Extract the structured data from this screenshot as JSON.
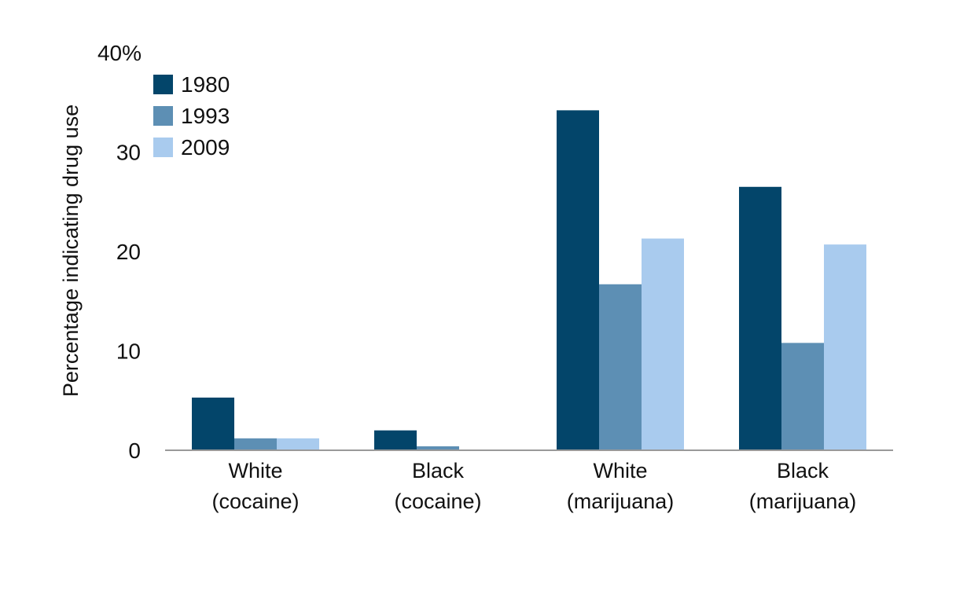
{
  "chart_data": {
    "type": "bar",
    "title": "",
    "xlabel": "",
    "ylabel": "Percentage indicating drug use",
    "ylim": [
      0,
      40
    ],
    "yticks": [
      {
        "value": 0,
        "label": "0"
      },
      {
        "value": 10,
        "label": "10"
      },
      {
        "value": 20,
        "label": "20"
      },
      {
        "value": 30,
        "label": "30"
      },
      {
        "value": 40,
        "label": "40%"
      }
    ],
    "categories": [
      [
        "White",
        "(cocaine)"
      ],
      [
        "Black",
        "(cocaine)"
      ],
      [
        "White",
        "(marijuana)"
      ],
      [
        "Black",
        "(marijuana)"
      ]
    ],
    "series": [
      {
        "name": "1980",
        "color": "#03456a",
        "values": [
          5.3,
          2.0,
          34.2,
          26.5
        ]
      },
      {
        "name": "1993",
        "color": "#5d8fb4",
        "values": [
          1.2,
          0.4,
          16.7,
          10.8
        ]
      },
      {
        "name": "2009",
        "color": "#a9cbee",
        "values": [
          1.2,
          0.0,
          21.3,
          20.7
        ]
      }
    ],
    "grid": false,
    "legend_position": "top-left",
    "axis_color": "#999999"
  }
}
